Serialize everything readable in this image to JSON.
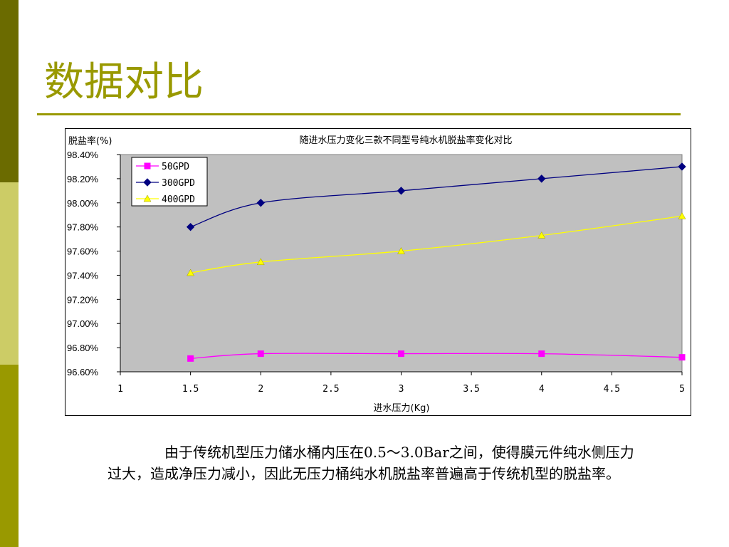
{
  "slide": {
    "title": "数据对比",
    "body": "由于传统机型压力储水桶内压在0.5～3.0Bar之间，使得膜元件纯水侧压力过大，造成净压力减小，因此无压力桶纯水机脱盐率普遍高于传统机型的脱盐率。"
  },
  "colors": {
    "plot_bg": "#c0c0c0",
    "sidebar_dark": "#6b6b00",
    "sidebar_light": "#cccc66",
    "sidebar_mid": "#999900",
    "title": "#999900"
  },
  "chart_data": {
    "type": "line",
    "title": "随进水压力变化三款不同型号纯水机脱盐率变化对比",
    "ylabel": "脱盐率(%)",
    "xlabel": "进水压力(Kg)",
    "xlim": [
      1,
      5
    ],
    "ylim": [
      96.6,
      98.4
    ],
    "x_ticks": [
      "1",
      "1.5",
      "2",
      "2.5",
      "3",
      "3.5",
      "4",
      "4.5",
      "5"
    ],
    "y_ticks": [
      "96.60%",
      "96.80%",
      "97.00%",
      "97.20%",
      "97.40%",
      "97.60%",
      "97.80%",
      "98.00%",
      "98.20%",
      "98.40%"
    ],
    "legend_position": "top-left",
    "grid": false,
    "series": [
      {
        "name": "50GPD",
        "color": "#ff00ff",
        "marker": "square",
        "x": [
          1.5,
          2,
          3,
          4,
          5
        ],
        "values": [
          96.71,
          96.75,
          96.75,
          96.75,
          96.72
        ]
      },
      {
        "name": "300GPD",
        "color": "#000080",
        "marker": "diamond",
        "x": [
          1.5,
          2,
          3,
          4,
          5
        ],
        "values": [
          97.8,
          98.0,
          98.1,
          98.2,
          98.3
        ]
      },
      {
        "name": "400GPD",
        "color": "#ffff00",
        "marker": "triangle",
        "x": [
          1.5,
          2,
          3,
          4,
          5
        ],
        "values": [
          97.42,
          97.51,
          97.6,
          97.73,
          97.89
        ]
      }
    ]
  }
}
